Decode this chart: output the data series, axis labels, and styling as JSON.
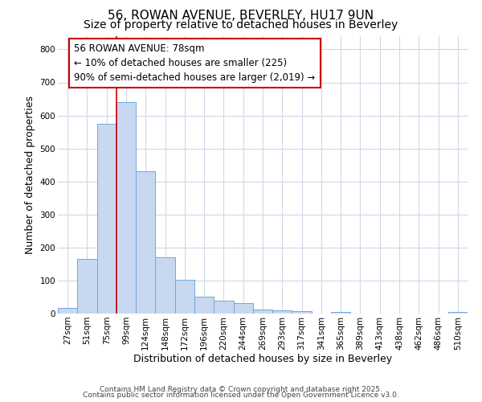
{
  "title1": "56, ROWAN AVENUE, BEVERLEY, HU17 9UN",
  "title2": "Size of property relative to detached houses in Beverley",
  "xlabel": "Distribution of detached houses by size in Beverley",
  "ylabel": "Number of detached properties",
  "categories": [
    "27sqm",
    "51sqm",
    "75sqm",
    "99sqm",
    "124sqm",
    "148sqm",
    "172sqm",
    "196sqm",
    "220sqm",
    "244sqm",
    "269sqm",
    "293sqm",
    "317sqm",
    "341sqm",
    "365sqm",
    "389sqm",
    "413sqm",
    "438sqm",
    "462sqm",
    "486sqm",
    "510sqm"
  ],
  "values": [
    18,
    165,
    575,
    640,
    430,
    170,
    103,
    52,
    40,
    32,
    12,
    10,
    8,
    0,
    5,
    0,
    0,
    0,
    0,
    0,
    5
  ],
  "bar_color": "#c8d8f0",
  "bar_edge_color": "#6fa8dc",
  "ylim": [
    0,
    840
  ],
  "yticks": [
    0,
    100,
    200,
    300,
    400,
    500,
    600,
    700,
    800
  ],
  "vline_x": 2.5,
  "vline_color": "#cc0000",
  "annotation_title": "56 ROWAN AVENUE: 78sqm",
  "annotation_line1": "← 10% of detached houses are smaller (225)",
  "annotation_line2": "90% of semi-detached houses are larger (2,019) →",
  "annotation_box_edgecolor": "#cc0000",
  "footer1": "Contains HM Land Registry data © Crown copyright and database right 2025.",
  "footer2": "Contains public sector information licensed under the Open Government Licence v3.0.",
  "background_color": "#ffffff",
  "plot_bg_color": "#ffffff",
  "grid_color": "#d0d8e8",
  "title_fontsize": 11,
  "subtitle_fontsize": 10,
  "ylabel_fontsize": 9,
  "xlabel_fontsize": 9,
  "tick_fontsize": 7.5,
  "annotation_fontsize": 8.5,
  "footer_fontsize": 6.5
}
